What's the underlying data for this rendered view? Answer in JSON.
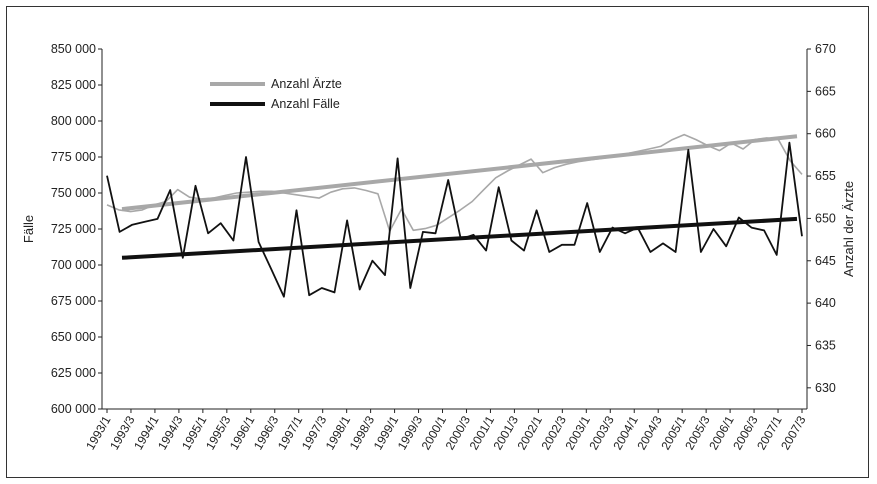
{
  "chart_data": {
    "type": "line",
    "ylabel": "Fälle",
    "y2label": "Anzahl der Ärzte",
    "ylim": [
      600000,
      850000
    ],
    "y2lim": [
      627.5,
      670
    ],
    "yticks": [
      "600 000",
      "625 000",
      "650 000",
      "675 000",
      "700 000",
      "725 000",
      "750 000",
      "775 000",
      "800 000",
      "825 000",
      "850 000"
    ],
    "y2ticks": [
      "630",
      "635",
      "640",
      "645",
      "650",
      "655",
      "660",
      "665",
      "670"
    ],
    "x_tick_labels": [
      "1993/1",
      "1993/3",
      "1994/1",
      "1994/3",
      "1995/1",
      "1995/3",
      "1996/1",
      "1996/3",
      "1997/1",
      "1997/3",
      "1998/1",
      "1998/3",
      "1999/1",
      "1999/3",
      "2000/1",
      "2000/3",
      "2001/1",
      "2001/3",
      "2002/1",
      "2002/3",
      "2003/1",
      "2003/3",
      "2004/1",
      "2004/3",
      "2005/1",
      "2005/3",
      "2006/1",
      "2006/3",
      "2007/1",
      "2007/3"
    ],
    "legend": [
      {
        "label": "Anzahl Ärzte",
        "color": "#a8a8a8"
      },
      {
        "label": "Anzahl Fälle",
        "color": "#111111"
      }
    ],
    "series": [
      {
        "name": "Anzahl Fälle",
        "axis": "left",
        "color": "#111111",
        "values": [
          762000,
          723000,
          728000,
          730000,
          732000,
          752000,
          705000,
          755000,
          722000,
          729000,
          717000,
          775000,
          716000,
          697000,
          678000,
          738000,
          679000,
          684000,
          681000,
          731000,
          683000,
          703000,
          693000,
          774000,
          684000,
          723000,
          722000,
          759000,
          718000,
          721000,
          710000,
          754000,
          717000,
          710000,
          738000,
          709000,
          714000,
          714000,
          743000,
          709000,
          726000,
          722000,
          726000,
          709000,
          715000,
          709000,
          780000,
          709000,
          725000,
          713000,
          733000,
          726000,
          724000,
          707000,
          785000,
          720000
        ]
      },
      {
        "name": "Anzahl Ärzte",
        "axis": "right",
        "color": "#a8a8a8",
        "values": [
          651.6,
          651.0,
          650.8,
          651.0,
          651.6,
          652.0,
          653.4,
          652.5,
          652.3,
          652.4,
          652.7,
          653.0,
          653.1,
          653.2,
          653.2,
          653.0,
          652.8,
          652.6,
          652.4,
          653.1,
          653.5,
          653.6,
          653.3,
          652.9,
          648.5,
          651.1,
          648.6,
          648.8,
          649.2,
          650.1,
          651.0,
          652.0,
          653.4,
          654.8,
          655.6,
          656.3,
          657.0,
          655.4,
          656.0,
          656.4,
          656.7,
          656.9,
          657.1,
          657.3,
          657.6,
          657.9,
          658.2,
          658.5,
          659.3,
          659.9,
          659.3,
          658.6,
          658.0,
          658.9,
          658.2,
          659.3,
          659.5,
          659.3,
          656.8,
          655.2
        ]
      },
      {
        "name": "Trend Anzahl Ärzte",
        "axis": "right",
        "color": "#a8a8a8",
        "values": [
          651.1,
          659.7
        ]
      },
      {
        "name": "Trend Anzahl Fälle",
        "axis": "left",
        "color": "#111111",
        "values": [
          705000,
          732000
        ]
      }
    ]
  }
}
